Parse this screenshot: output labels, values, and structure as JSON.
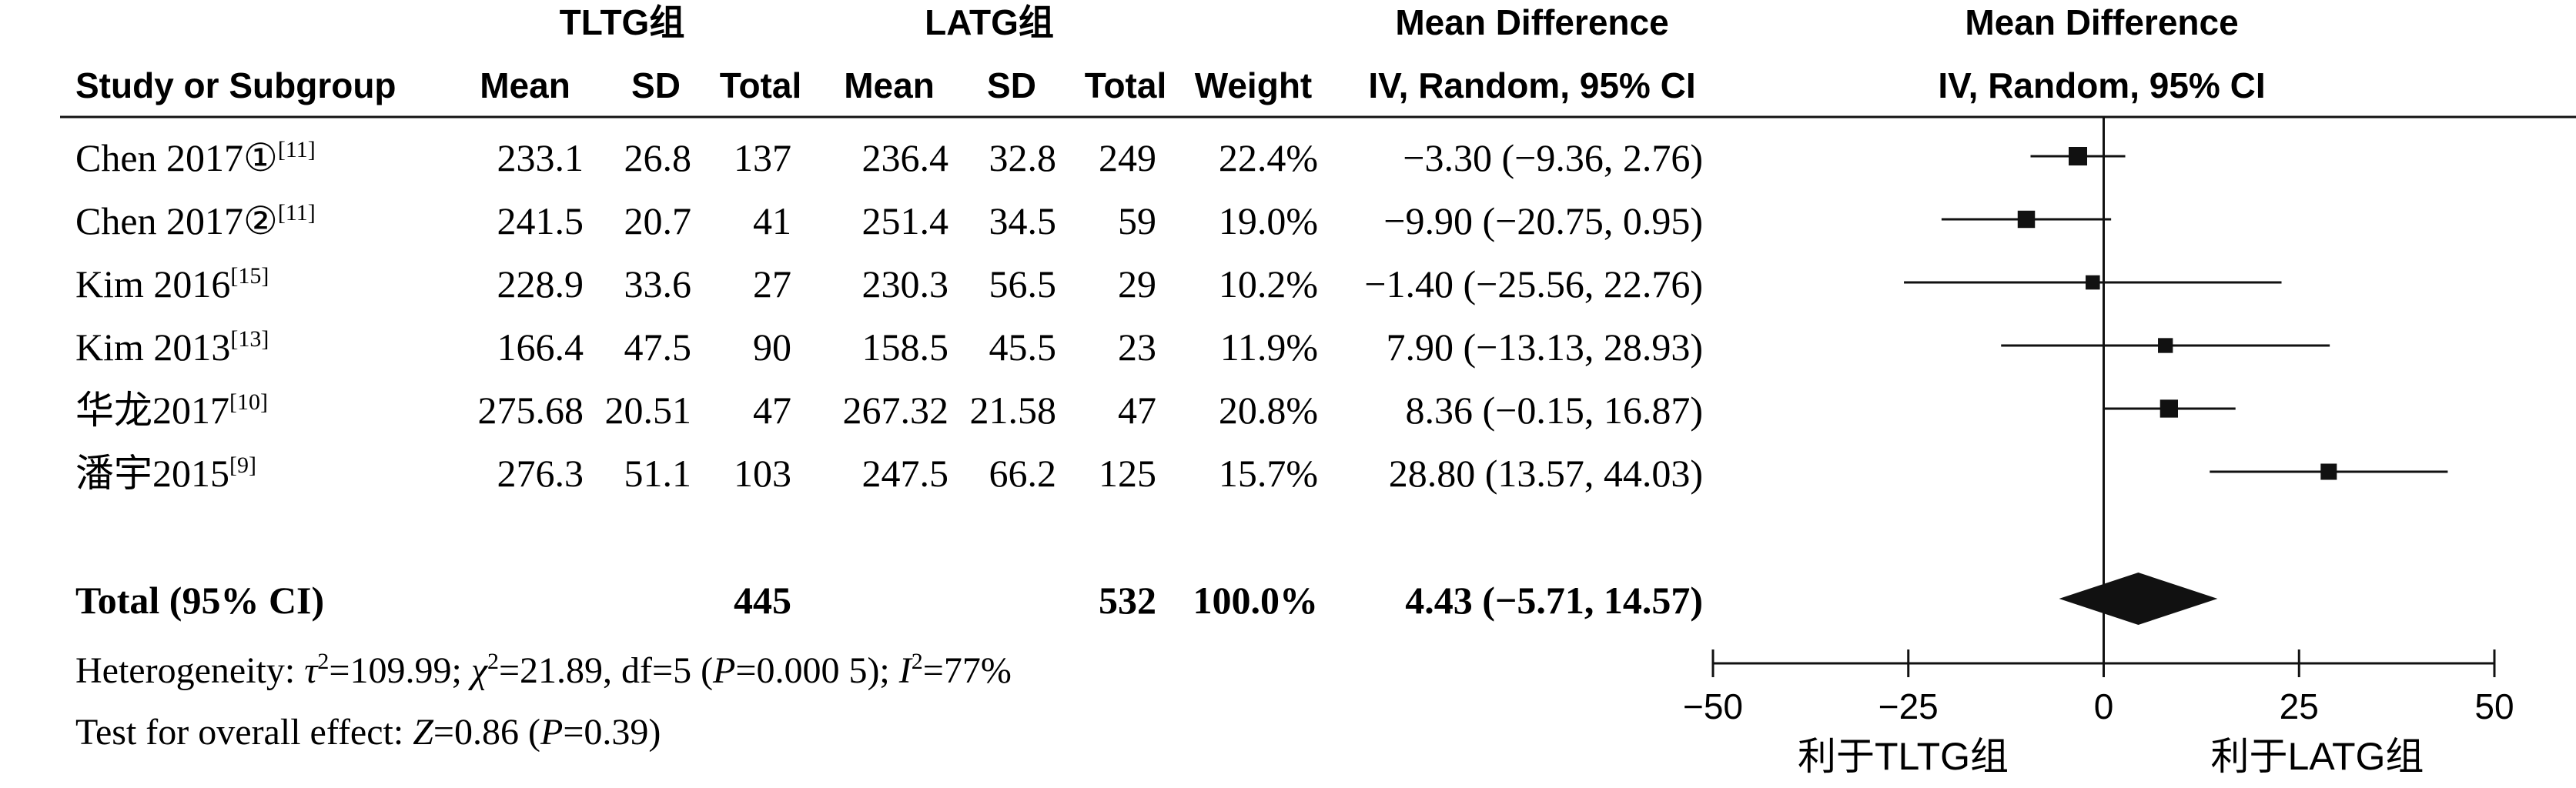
{
  "chart_data": {
    "type": "forest",
    "group_headers": {
      "experimental": "TLTG组",
      "control": "LATG组"
    },
    "columns": {
      "study": "Study or Subgroup",
      "mean": "Mean",
      "sd": "SD",
      "total": "Total",
      "weight": "Weight",
      "md_title": "Mean Difference",
      "md_method": "IV, Random, 95% CI"
    },
    "studies": [
      {
        "name": "Chen 2017①",
        "ref": "[11]",
        "exp_mean": "233.1",
        "exp_sd": "26.8",
        "exp_total": "137",
        "ctl_mean": "236.4",
        "ctl_sd": "32.8",
        "ctl_total": "249",
        "weight": "22.4%",
        "ci_text": "−3.30 (−9.36, 2.76)",
        "md": -3.3,
        "lo": -9.36,
        "hi": 2.76
      },
      {
        "name": "Chen 2017②",
        "ref": "[11]",
        "exp_mean": "241.5",
        "exp_sd": "20.7",
        "exp_total": "41",
        "ctl_mean": "251.4",
        "ctl_sd": "34.5",
        "ctl_total": "59",
        "weight": "19.0%",
        "ci_text": "−9.90 (−20.75, 0.95)",
        "md": -9.9,
        "lo": -20.75,
        "hi": 0.95
      },
      {
        "name": "Kim 2016",
        "ref": "[15]",
        "exp_mean": "228.9",
        "exp_sd": "33.6",
        "exp_total": "27",
        "ctl_mean": "230.3",
        "ctl_sd": "56.5",
        "ctl_total": "29",
        "weight": "10.2%",
        "ci_text": "−1.40 (−25.56, 22.76)",
        "md": -1.4,
        "lo": -25.56,
        "hi": 22.76
      },
      {
        "name": "Kim 2013",
        "ref": "[13]",
        "exp_mean": "166.4",
        "exp_sd": "47.5",
        "exp_total": "90",
        "ctl_mean": "158.5",
        "ctl_sd": "45.5",
        "ctl_total": "23",
        "weight": "11.9%",
        "ci_text": "7.90 (−13.13, 28.93)",
        "md": 7.9,
        "lo": -13.13,
        "hi": 28.93
      },
      {
        "name": "华龙2017",
        "ref": "[10]",
        "exp_mean": "275.68",
        "exp_sd": "20.51",
        "exp_total": "47",
        "ctl_mean": "267.32",
        "ctl_sd": "21.58",
        "ctl_total": "47",
        "weight": "20.8%",
        "ci_text": "8.36 (−0.15, 16.87)",
        "md": 8.36,
        "lo": -0.15,
        "hi": 16.87
      },
      {
        "name": "潘宇2015",
        "ref": "[9]",
        "exp_mean": "276.3",
        "exp_sd": "51.1",
        "exp_total": "103",
        "ctl_mean": "247.5",
        "ctl_sd": "66.2",
        "ctl_total": "125",
        "weight": "15.7%",
        "ci_text": "28.80 (13.57, 44.03)",
        "md": 28.8,
        "lo": 13.57,
        "hi": 44.03
      }
    ],
    "total": {
      "label": "Total (95% CI)",
      "exp_total": "445",
      "ctl_total": "532",
      "weight": "100.0%",
      "ci_text": "4.43 (−5.71, 14.57)",
      "md": 4.43,
      "lo": -5.71,
      "hi": 14.57
    },
    "heterogeneity": {
      "label": "Heterogeneity: ",
      "tau_sym": "τ",
      "tau_val": "=109.99; ",
      "chi_sym": "χ",
      "chi_val": "=21.89, df=5 (",
      "p_sym": "P",
      "p_val": "=0.000 5); ",
      "i_sym": "I",
      "i_val": "=77%",
      "sq": "2"
    },
    "overall_effect": {
      "label": "Test for overall effect: ",
      "z_sym": "Z",
      "z_val": "=0.86 (",
      "p_sym": "P",
      "p_val": "=0.39)"
    },
    "axis": {
      "min": -50,
      "max": 50,
      "ticks": [
        -50,
        -25,
        0,
        25,
        50
      ],
      "tick_labels": [
        "−50",
        "−25",
        "0",
        "25",
        "50"
      ]
    },
    "favours": {
      "left": "利于TLTG组",
      "right": "利于LATG组"
    },
    "colors": {
      "ink": "#111111",
      "background": "#ffffff"
    }
  }
}
